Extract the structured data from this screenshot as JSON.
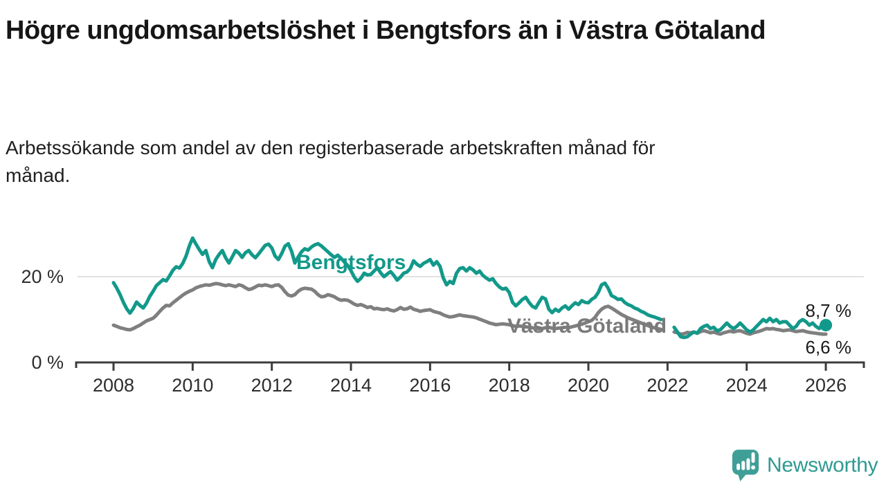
{
  "header": {
    "title": "Högre ungdomsarbetslöshet i Bengtsfors än i Västra Götaland",
    "subtitle": "Arbetssökande som andel av den registerbaserade arbetskraften månad för månad."
  },
  "footer": {
    "brand": "Newsworthy"
  },
  "colors": {
    "bengtsfors_teal": "#12998a",
    "vastra_gray": "#7f7f7f",
    "brand_teal": "#3f9f97",
    "axis": "#3c3c3c",
    "gridline": "#d9d9d9",
    "text": "#161616"
  },
  "chart_data": {
    "type": "line",
    "unit": "%",
    "x_start_year": 2008,
    "x_step_months": 1,
    "xlim": [
      2007.1,
      2027
    ],
    "ylim": [
      0,
      31
    ],
    "grid": "single horizontal gridline at 20 %",
    "legend_position": "inline labels on lines",
    "x_tick_labels": [
      "2008",
      "2010",
      "2012",
      "2014",
      "2016",
      "2018",
      "2020",
      "2022",
      "2024",
      "2026"
    ],
    "y_ticks": [
      {
        "value": 20,
        "label": "20 %"
      },
      {
        "value": 0,
        "label": "0 %"
      }
    ],
    "series": [
      {
        "name": "Bengtsfors",
        "color": "#12998a",
        "end_label": "8,7 %",
        "end_value": 8.7,
        "end_dot": true,
        "values": [
          18.6,
          17.3,
          15.8,
          14.0,
          12.5,
          11.5,
          12.6,
          14.1,
          13.3,
          12.7,
          13.8,
          15.4,
          16.6,
          17.9,
          18.6,
          19.3,
          19.0,
          20.2,
          21.5,
          22.3,
          22.0,
          23.1,
          24.8,
          27.2,
          29.0,
          27.6,
          26.3,
          25.2,
          26.1,
          23.5,
          22.1,
          24.0,
          25.2,
          26.1,
          24.4,
          23.2,
          24.6,
          26.1,
          25.5,
          24.5,
          25.6,
          26.1,
          25.1,
          24.4,
          25.3,
          26.3,
          27.3,
          27.6,
          26.7,
          24.8,
          24.0,
          25.4,
          27.1,
          27.7,
          25.9,
          23.2,
          24.6,
          25.8,
          26.5,
          26.2,
          26.9,
          27.4,
          27.7,
          27.2,
          26.5,
          25.8,
          25.1,
          24.5,
          25.0,
          24.3,
          23.4,
          22.6,
          21.4,
          19.9,
          18.9,
          19.6,
          20.8,
          20.4,
          20.5,
          21.3,
          22.1,
          20.9,
          20.0,
          20.6,
          21.2,
          20.3,
          19.2,
          19.9,
          20.8,
          21.1,
          21.9,
          23.7,
          22.9,
          22.4,
          23.1,
          23.5,
          24.0,
          22.7,
          23.5,
          22.4,
          19.7,
          18.1,
          18.9,
          18.4,
          20.8,
          21.9,
          22.1,
          21.3,
          22.1,
          21.6,
          20.8,
          21.3,
          20.3,
          19.7,
          19.2,
          19.5,
          18.4,
          17.6,
          17.1,
          17.3,
          16.3,
          14.0,
          13.2,
          13.9,
          14.7,
          15.2,
          14.0,
          13.1,
          12.7,
          14.0,
          15.2,
          14.8,
          12.4,
          11.6,
          12.4,
          11.9,
          12.7,
          13.2,
          12.4,
          13.2,
          13.9,
          13.5,
          14.4,
          14.0,
          13.9,
          14.7,
          15.2,
          16.3,
          18.1,
          18.5,
          17.3,
          15.6,
          15.2,
          14.7,
          14.8,
          14.0,
          13.5,
          13.2,
          12.7,
          12.4,
          11.9,
          11.6,
          11.1,
          10.8,
          10.6,
          10.3,
          10.0,
          null,
          null,
          null,
          8.2,
          7.1,
          6.0,
          5.8,
          6.0,
          6.6,
          7.1,
          6.8,
          7.9,
          8.4,
          8.7,
          7.9,
          8.2,
          7.4,
          7.6,
          8.4,
          9.2,
          8.4,
          7.9,
          8.4,
          9.2,
          8.4,
          7.6,
          7.1,
          7.6,
          8.4,
          9.2,
          10.0,
          9.5,
          10.3,
          9.5,
          10.0,
          9.2,
          9.5,
          9.5,
          8.7,
          7.9,
          8.4,
          9.5,
          10.0,
          9.5,
          8.7,
          9.2,
          8.4,
          7.9,
          8.9,
          8.7
        ]
      },
      {
        "name": "Västra Götaland",
        "color": "#7f7f7f",
        "end_label": "6,6 %",
        "end_value": 6.6,
        "end_dot": false,
        "values": [
          8.7,
          8.4,
          8.1,
          7.9,
          7.7,
          7.6,
          7.9,
          8.3,
          8.7,
          9.2,
          9.7,
          10.0,
          10.3,
          11.0,
          11.9,
          12.7,
          13.3,
          13.2,
          13.9,
          14.5,
          15.1,
          15.7,
          16.2,
          16.6,
          16.9,
          17.4,
          17.7,
          17.9,
          18.1,
          18.0,
          18.2,
          18.4,
          18.3,
          18.1,
          17.9,
          18.1,
          17.9,
          17.7,
          18.1,
          17.9,
          17.4,
          17.0,
          17.2,
          17.6,
          18.0,
          17.9,
          18.1,
          17.9,
          17.7,
          18.0,
          18.1,
          17.5,
          16.5,
          15.7,
          15.5,
          15.8,
          16.6,
          17.1,
          17.3,
          17.2,
          17.1,
          16.6,
          15.8,
          15.3,
          15.4,
          15.8,
          15.6,
          15.3,
          14.8,
          14.5,
          14.6,
          14.5,
          14.1,
          13.6,
          13.3,
          13.5,
          13.2,
          12.8,
          13.0,
          12.5,
          12.6,
          12.4,
          12.3,
          12.5,
          12.2,
          12.0,
          12.3,
          12.8,
          12.4,
          12.5,
          12.9,
          12.4,
          12.2,
          11.9,
          12.1,
          12.2,
          12.3,
          11.9,
          11.7,
          11.5,
          11.1,
          10.8,
          10.6,
          10.7,
          10.9,
          11.1,
          10.9,
          10.8,
          10.7,
          10.6,
          10.4,
          10.1,
          9.8,
          9.5,
          9.2,
          9.0,
          8.8,
          8.9,
          9.0,
          8.9,
          8.8,
          8.6,
          8.4,
          8.5,
          8.4,
          8.3,
          8.2,
          8.1,
          7.9,
          7.8,
          7.9,
          8.1,
          8.2,
          8.0,
          7.9,
          8.0,
          8.1,
          8.2,
          8.1,
          8.3,
          8.5,
          8.7,
          8.9,
          9.2,
          9.5,
          9.8,
          10.5,
          11.6,
          12.4,
          12.9,
          13.1,
          12.7,
          12.2,
          11.7,
          11.2,
          10.8,
          10.4,
          10.1,
          9.8,
          9.5,
          9.2,
          8.9,
          8.6,
          8.3,
          8.1,
          7.9,
          7.7,
          null,
          null,
          null,
          7.1,
          6.9,
          6.6,
          6.7,
          7.0,
          6.9,
          7.1,
          6.8,
          7.2,
          7.4,
          7.2,
          6.9,
          7.1,
          6.8,
          6.6,
          6.9,
          7.1,
          7.3,
          7.1,
          7.3,
          7.4,
          7.1,
          6.8,
          6.6,
          6.9,
          7.1,
          7.3,
          7.6,
          7.9,
          7.8,
          7.9,
          7.7,
          7.6,
          7.4,
          7.5,
          7.6,
          7.4,
          7.2,
          7.3,
          7.4,
          7.2,
          7.0,
          6.9,
          6.8,
          6.7,
          6.6,
          6.6
        ]
      }
    ]
  }
}
